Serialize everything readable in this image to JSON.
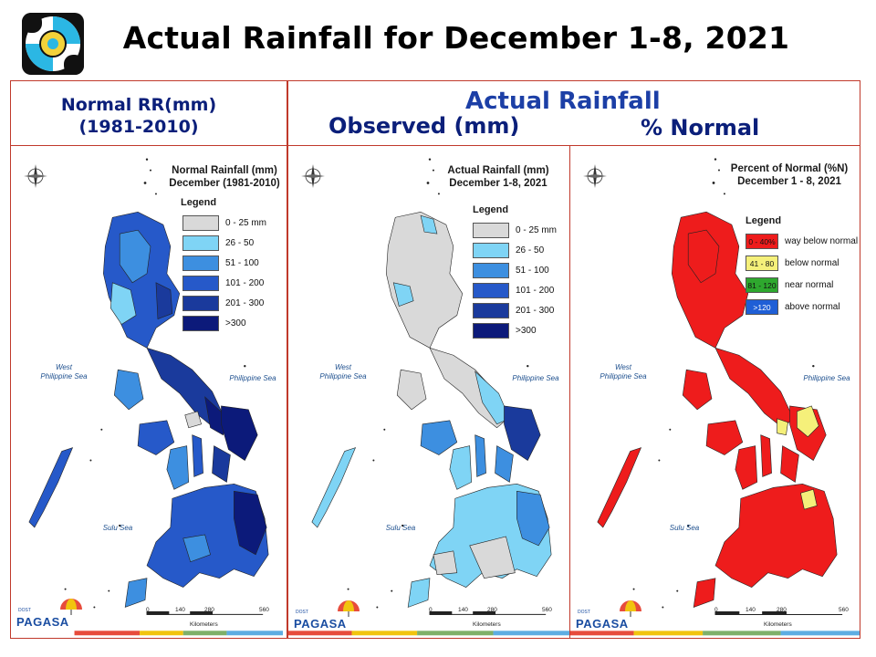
{
  "title": "Actual Rainfall for December 1-8, 2021",
  "header": {
    "left_line1": "Normal RR(mm)",
    "left_line2": "(1981-2010)",
    "right_main": "Actual Rainfall",
    "right_observed": "Observed (mm)",
    "right_percent": "% Normal"
  },
  "panels": [
    {
      "id": "normal",
      "map_title_line1": "Normal Rainfall (mm)",
      "map_title_line2": "December (1981-2010)",
      "legend_title": "Legend",
      "legend": [
        {
          "label": "0 - 25 mm",
          "color": "#d9d9d9"
        },
        {
          "label": "26 - 50",
          "color": "#7fd4f5"
        },
        {
          "label": "51 - 100",
          "color": "#3d8fe0"
        },
        {
          "label": "101 - 200",
          "color": "#2659c9"
        },
        {
          "label": "201 - 300",
          "color": "#1a3a9c"
        },
        {
          "label": ">300",
          "color": "#0c1a7a"
        }
      ],
      "sea_west_line1": "West",
      "sea_west_line2": "Philippine Sea",
      "sea_east": "Philippine Sea",
      "sea_sulu": "Sulu Sea",
      "scale_ticks": [
        "0",
        "140",
        "280",
        "560"
      ],
      "scale_unit": "Kilometers"
    },
    {
      "id": "observed",
      "map_title_line1": "Actual Rainfall (mm)",
      "map_title_line2": "December 1-8, 2021",
      "legend_title": "Legend",
      "legend": [
        {
          "label": "0 - 25 mm",
          "color": "#d9d9d9"
        },
        {
          "label": "26 - 50",
          "color": "#7fd4f5"
        },
        {
          "label": "51 - 100",
          "color": "#3d8fe0"
        },
        {
          "label": "101 - 200",
          "color": "#2659c9"
        },
        {
          "label": "201 - 300",
          "color": "#1a3a9c"
        },
        {
          "label": ">300",
          "color": "#0c1a7a"
        }
      ],
      "sea_west_line1": "West",
      "sea_west_line2": "Philippine Sea",
      "sea_east": "Philippine Sea",
      "sea_sulu": "Sulu Sea",
      "scale_ticks": [
        "0",
        "140",
        "280",
        "560"
      ],
      "scale_unit": "Kilometers"
    },
    {
      "id": "percent",
      "map_title_line1": "Percent of Normal (%N)",
      "map_title_line2": "December 1 - 8, 2021",
      "legend_title": "Legend",
      "legend": [
        {
          "swatch": "0 - 40%",
          "label": "way below normal",
          "color": "#ee1c1c"
        },
        {
          "swatch": "41 - 80",
          "label": "below normal",
          "color": "#f5f07a"
        },
        {
          "swatch": "81 - 120",
          "label": "near normal",
          "color": "#2ea82e"
        },
        {
          "swatch": ">120",
          "label": "above normal",
          "color": "#1f5fd6"
        }
      ],
      "sea_west_line1": "West",
      "sea_west_line2": "Philippine Sea",
      "sea_east": "Philippine Sea",
      "sea_sulu": "Sulu Sea",
      "scale_ticks": [
        "0",
        "140",
        "280",
        "560"
      ],
      "scale_unit": "Kilometers"
    }
  ],
  "branding": {
    "agency": "PAGASA",
    "agency_small": "DOST"
  },
  "icons": [
    "pagasa-seal-icon",
    "compass-rose-icon",
    "umbrella-icon"
  ]
}
